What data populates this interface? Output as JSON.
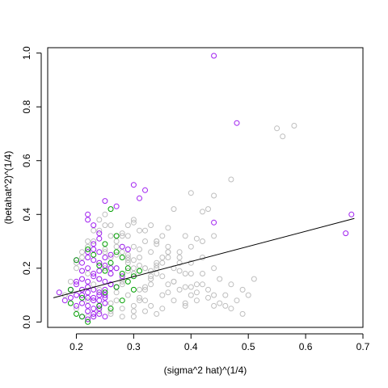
{
  "chart_data": {
    "type": "scatter",
    "title": "",
    "xlabel": "(sigma^2 hat)^(1/4)",
    "ylabel": "(betahat^2)^(1/4)",
    "xlim": [
      0.15,
      0.7
    ],
    "ylim": [
      -0.02,
      1.02
    ],
    "x_ticks": [
      0.2,
      0.3,
      0.4,
      0.5,
      0.6,
      0.7
    ],
    "x_tick_labels": [
      "0.2",
      "0.3",
      "0.4",
      "0.5",
      "0.6",
      "0.7"
    ],
    "y_ticks": [
      0.0,
      0.2,
      0.4,
      0.6,
      0.8,
      1.0
    ],
    "y_tick_labels": [
      "0.0",
      "0.2",
      "0.4",
      "0.6",
      "0.8",
      "1.0"
    ],
    "grid": false,
    "legend": "none",
    "marker": "open-circle",
    "series": [
      {
        "color": "#bebebe",
        "x": [
          0.18,
          0.19,
          0.2,
          0.2,
          0.21,
          0.21,
          0.22,
          0.22,
          0.22,
          0.23,
          0.23,
          0.23,
          0.24,
          0.24,
          0.24,
          0.25,
          0.25,
          0.25,
          0.26,
          0.26,
          0.26,
          0.27,
          0.27,
          0.27,
          0.28,
          0.28,
          0.28,
          0.29,
          0.29,
          0.29,
          0.3,
          0.3,
          0.3,
          0.31,
          0.31,
          0.31,
          0.32,
          0.32,
          0.32,
          0.33,
          0.33,
          0.33,
          0.34,
          0.34,
          0.35,
          0.35,
          0.36,
          0.36,
          0.37,
          0.37,
          0.38,
          0.38,
          0.39,
          0.39,
          0.4,
          0.4,
          0.41,
          0.41,
          0.42,
          0.42,
          0.43,
          0.44,
          0.44,
          0.45,
          0.46,
          0.47,
          0.48,
          0.49,
          0.5,
          0.51,
          0.26,
          0.27,
          0.28,
          0.29,
          0.3,
          0.31,
          0.32,
          0.33,
          0.34,
          0.35,
          0.36,
          0.37,
          0.38,
          0.39,
          0.4,
          0.24,
          0.25,
          0.26,
          0.27,
          0.28,
          0.29,
          0.3,
          0.31,
          0.32,
          0.33,
          0.34,
          0.35,
          0.36,
          0.3,
          0.32,
          0.34,
          0.36,
          0.38,
          0.4,
          0.42,
          0.44,
          0.46,
          0.2,
          0.21,
          0.22,
          0.23,
          0.24,
          0.25,
          0.26,
          0.27,
          0.28,
          0.29,
          0.3,
          0.22,
          0.24,
          0.26,
          0.28,
          0.3,
          0.32,
          0.34,
          0.25,
          0.27,
          0.29,
          0.31,
          0.33,
          0.35,
          0.37,
          0.39,
          0.41,
          0.43,
          0.45,
          0.47,
          0.49,
          0.24,
          0.26,
          0.28,
          0.3,
          0.32,
          0.34,
          0.36,
          0.38,
          0.4,
          0.42,
          0.44,
          0.55,
          0.56,
          0.58,
          0.47,
          0.44,
          0.4,
          0.42,
          0.43,
          0.37,
          0.35,
          0.33,
          0.3,
          0.28,
          0.41,
          0.39,
          0.36,
          0.34,
          0.31,
          0.29
        ],
        "y": [
          0.1,
          0.15,
          0.05,
          0.2,
          0.12,
          0.24,
          0.08,
          0.18,
          0.28,
          0.02,
          0.14,
          0.3,
          0.06,
          0.22,
          0.34,
          0.1,
          0.26,
          0.36,
          0.04,
          0.18,
          0.32,
          0.08,
          0.2,
          0.3,
          0.02,
          0.14,
          0.26,
          0.1,
          0.22,
          0.32,
          0.06,
          0.18,
          0.28,
          0.12,
          0.24,
          0.34,
          0.08,
          0.2,
          0.3,
          0.14,
          0.26,
          0.06,
          0.18,
          0.3,
          0.1,
          0.22,
          0.14,
          0.26,
          0.08,
          0.2,
          0.12,
          0.24,
          0.06,
          0.18,
          0.1,
          0.22,
          0.14,
          0.08,
          0.18,
          0.24,
          0.12,
          0.2,
          0.06,
          0.16,
          0.1,
          0.14,
          0.08,
          0.12,
          0.1,
          0.16,
          0.07,
          0.11,
          0.15,
          0.19,
          0.23,
          0.09,
          0.13,
          0.17,
          0.21,
          0.05,
          0.11,
          0.15,
          0.19,
          0.07,
          0.13,
          0.16,
          0.2,
          0.24,
          0.28,
          0.32,
          0.36,
          0.04,
          0.08,
          0.12,
          0.16,
          0.2,
          0.24,
          0.28,
          0.38,
          0.34,
          0.3,
          0.26,
          0.22,
          0.18,
          0.14,
          0.1,
          0.06,
          0.22,
          0.26,
          0.3,
          0.34,
          0.38,
          0.4,
          0.36,
          0.32,
          0.28,
          0.24,
          0.2,
          0.02,
          0.04,
          0.03,
          0.05,
          0.02,
          0.04,
          0.03,
          0.27,
          0.25,
          0.23,
          0.21,
          0.19,
          0.17,
          0.15,
          0.13,
          0.11,
          0.09,
          0.07,
          0.05,
          0.03,
          0.12,
          0.14,
          0.16,
          0.18,
          0.2,
          0.22,
          0.24,
          0.26,
          0.28,
          0.3,
          0.32,
          0.72,
          0.69,
          0.73,
          0.53,
          0.47,
          0.48,
          0.41,
          0.42,
          0.42,
          0.32,
          0.36,
          0.37,
          0.33,
          0.31,
          0.32,
          0.35,
          0.29,
          0.27,
          0.25
        ]
      },
      {
        "color": "#a020f0",
        "x": [
          0.44,
          0.48,
          0.3,
          0.32,
          0.31,
          0.25,
          0.27,
          0.22,
          0.23,
          0.24,
          0.23,
          0.22,
          0.24,
          0.28,
          0.29,
          0.44,
          0.68,
          0.67,
          0.17,
          0.18,
          0.19,
          0.2,
          0.21,
          0.22,
          0.23,
          0.24,
          0.25,
          0.26,
          0.27,
          0.2,
          0.21,
          0.22,
          0.23,
          0.24,
          0.25,
          0.26,
          0.21,
          0.22,
          0.23,
          0.24,
          0.25,
          0.22,
          0.23,
          0.24,
          0.21,
          0.22,
          0.23,
          0.24,
          0.25,
          0.26,
          0.2,
          0.21,
          0.22,
          0.23,
          0.24,
          0.25,
          0.26,
          0.22,
          0.23,
          0.24,
          0.25,
          0.21,
          0.22,
          0.23,
          0.24,
          0.25,
          0.22,
          0.23,
          0.24,
          0.19,
          0.2,
          0.27,
          0.28,
          0.26,
          0.24,
          0.23,
          0.22,
          0.25,
          0.21,
          0.2
        ],
        "y": [
          0.99,
          0.74,
          0.51,
          0.49,
          0.46,
          0.45,
          0.43,
          0.4,
          0.36,
          0.33,
          0.29,
          0.38,
          0.31,
          0.28,
          0.27,
          0.37,
          0.4,
          0.33,
          0.11,
          0.08,
          0.09,
          0.1,
          0.12,
          0.11,
          0.09,
          0.1,
          0.12,
          0.14,
          0.13,
          0.14,
          0.16,
          0.15,
          0.17,
          0.16,
          0.15,
          0.14,
          0.07,
          0.06,
          0.05,
          0.06,
          0.07,
          0.04,
          0.03,
          0.05,
          0.19,
          0.2,
          0.18,
          0.19,
          0.21,
          0.2,
          0.23,
          0.22,
          0.24,
          0.23,
          0.22,
          0.24,
          0.25,
          0.13,
          0.12,
          0.11,
          0.1,
          0.02,
          0.01,
          0.02,
          0.03,
          0.02,
          0.26,
          0.27,
          0.26,
          0.12,
          0.15,
          0.2,
          0.17,
          0.18,
          0.08,
          0.08,
          0.09,
          0.09,
          0.1,
          0.06
        ]
      },
      {
        "color": "#00a000",
        "x": [
          0.26,
          0.27,
          0.25,
          0.28,
          0.29,
          0.3,
          0.31,
          0.2,
          0.19,
          0.21,
          0.24,
          0.26,
          0.28,
          0.25,
          0.27,
          0.29,
          0.22,
          0.2,
          0.19,
          0.26,
          0.27,
          0.28,
          0.25,
          0.24,
          0.23,
          0.3,
          0.22,
          0.21
        ],
        "y": [
          0.42,
          0.32,
          0.29,
          0.24,
          0.2,
          0.17,
          0.19,
          0.23,
          0.12,
          0.02,
          0.06,
          0.05,
          0.08,
          0.11,
          0.13,
          0.15,
          0.27,
          0.03,
          0.07,
          0.22,
          0.26,
          0.18,
          0.19,
          0.21,
          0.25,
          0.12,
          0.0,
          0.09
        ]
      }
    ],
    "fit_line": {
      "color": "#000000",
      "x": [
        0.16,
        0.685
      ],
      "y": [
        0.09,
        0.385
      ]
    }
  }
}
